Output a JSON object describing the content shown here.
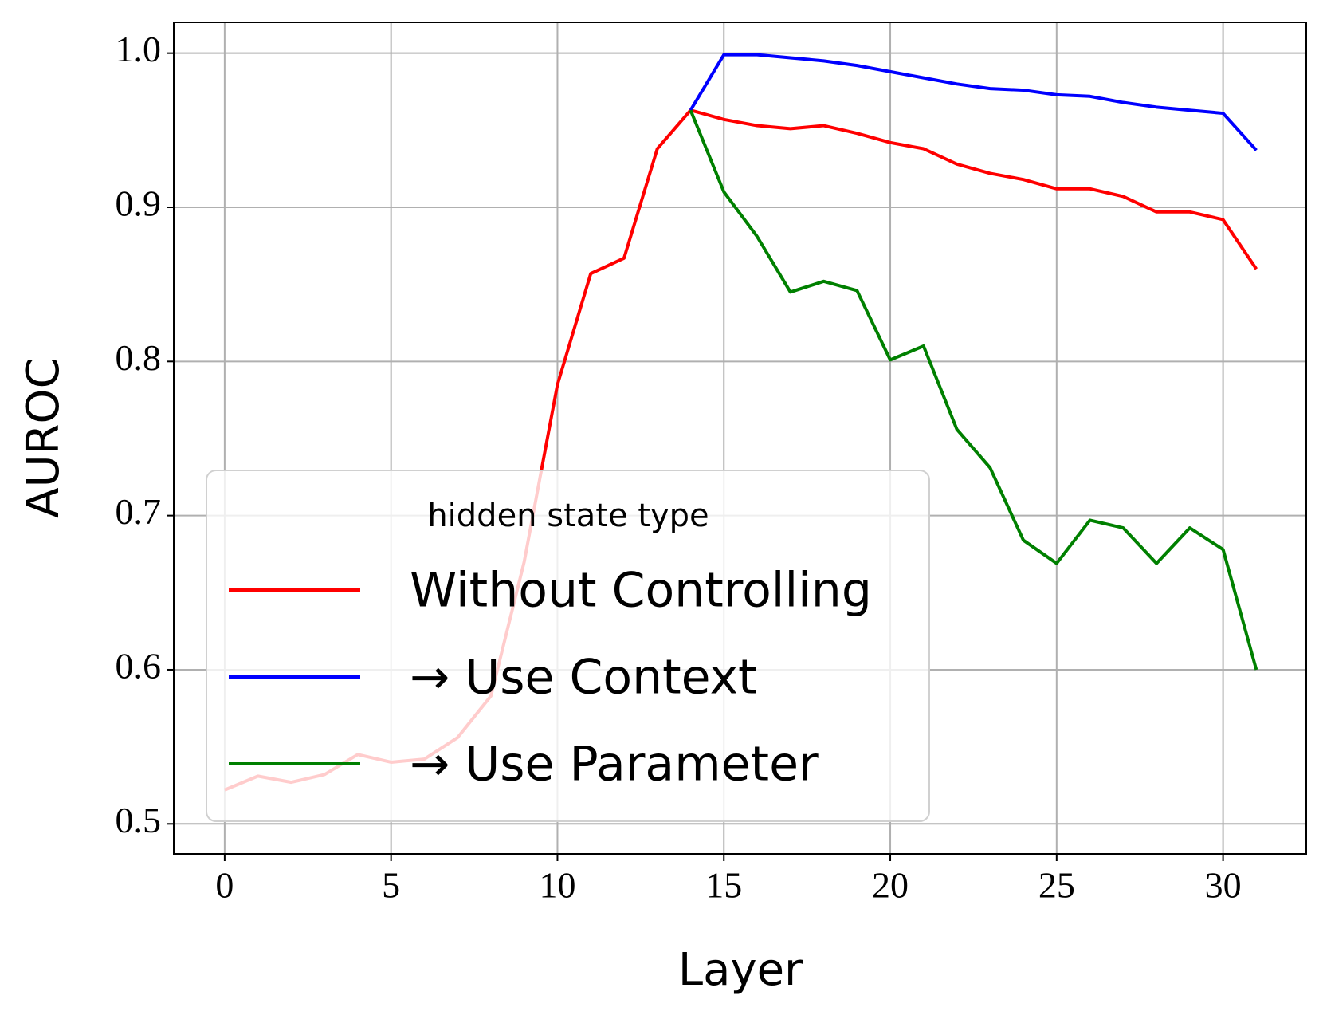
{
  "chart_data": {
    "type": "line",
    "x_label": "Layer",
    "y_label": "AUROC",
    "x": [
      0,
      1,
      2,
      3,
      4,
      5,
      6,
      7,
      8,
      9,
      10,
      11,
      12,
      13,
      14,
      15,
      16,
      17,
      18,
      19,
      20,
      21,
      22,
      23,
      24,
      25,
      26,
      27,
      28,
      29,
      30,
      31
    ],
    "series": [
      {
        "name": "Without Controlling",
        "color": "#ff0000",
        "values": [
          0.522,
          0.531,
          0.527,
          0.532,
          0.545,
          0.54,
          0.542,
          0.556,
          0.583,
          0.67,
          0.785,
          0.857,
          0.867,
          0.938,
          0.963,
          0.957,
          0.953,
          0.951,
          0.953,
          0.948,
          0.942,
          0.938,
          0.928,
          0.922,
          0.918,
          0.912,
          0.912,
          0.907,
          0.897,
          0.897,
          0.892,
          0.86
        ]
      },
      {
        "name": "→ Use Context",
        "color": "#0000ff",
        "values": [
          null,
          null,
          null,
          null,
          null,
          null,
          null,
          null,
          null,
          null,
          null,
          null,
          null,
          null,
          0.963,
          0.999,
          0.999,
          0.997,
          0.995,
          0.992,
          0.988,
          0.984,
          0.98,
          0.977,
          0.976,
          0.973,
          0.972,
          0.968,
          0.965,
          0.963,
          0.961,
          0.937
        ]
      },
      {
        "name": "→ Use Parameter",
        "color": "#008000",
        "values": [
          null,
          null,
          null,
          null,
          null,
          null,
          null,
          null,
          null,
          null,
          null,
          null,
          null,
          null,
          0.963,
          0.91,
          0.881,
          0.845,
          0.852,
          0.846,
          0.801,
          0.81,
          0.756,
          0.731,
          0.684,
          0.669,
          0.697,
          0.692,
          0.669,
          0.692,
          0.678,
          0.6
        ]
      }
    ],
    "legend_title": "hidden state type",
    "legend": "lower left",
    "grid": true,
    "xlim": [
      -1.53,
      32.5
    ],
    "xticks": [
      0,
      5,
      10,
      15,
      20,
      25,
      30
    ],
    "ylim": [
      0.4805,
      1.02
    ],
    "yticks": [
      {
        "value": 1,
        "label": "1.0"
      },
      0.9,
      0.8,
      0.7,
      0.6,
      0.5
    ]
  }
}
